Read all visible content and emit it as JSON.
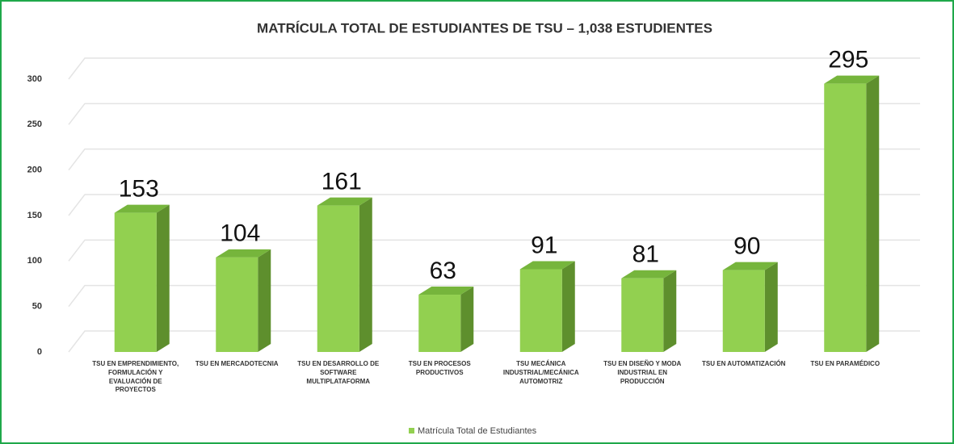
{
  "chart_data": {
    "type": "bar3d",
    "title": "MATRÍCULA TOTAL DE ESTUDIANTES DE TSU – 1,038 ESTUDIENTES",
    "categories": [
      "TSU EN EMPRENDIMIENTO, FORMULACIÓN Y EVALUACIÓN DE PROYECTOS",
      "TSU EN MERCADOTECNIA",
      "TSU EN DESARROLLO DE SOFTWARE MULTIPLATAFORMA",
      "TSU EN PROCESOS PRODUCTIVOS",
      "TSU MECÁNICA INDUSTRIAL/MECÁNICA AUTOMOTRIZ",
      "TSU EN DISEÑO Y MODA INDUSTRIAL EN PRODUCCIÓN",
      "TSU EN AUTOMATIZACIÓN",
      "TSU EN PARAMÉDICO"
    ],
    "series": [
      {
        "name": "Matrícula Total de Estudiantes",
        "color": "#92d050",
        "values": [
          153,
          104,
          161,
          63,
          91,
          81,
          90,
          295
        ]
      }
    ],
    "ylim": [
      0,
      300
    ],
    "yticks": [
      0,
      50,
      100,
      150,
      200,
      250,
      300
    ],
    "grid": true,
    "legend": "bottom"
  }
}
